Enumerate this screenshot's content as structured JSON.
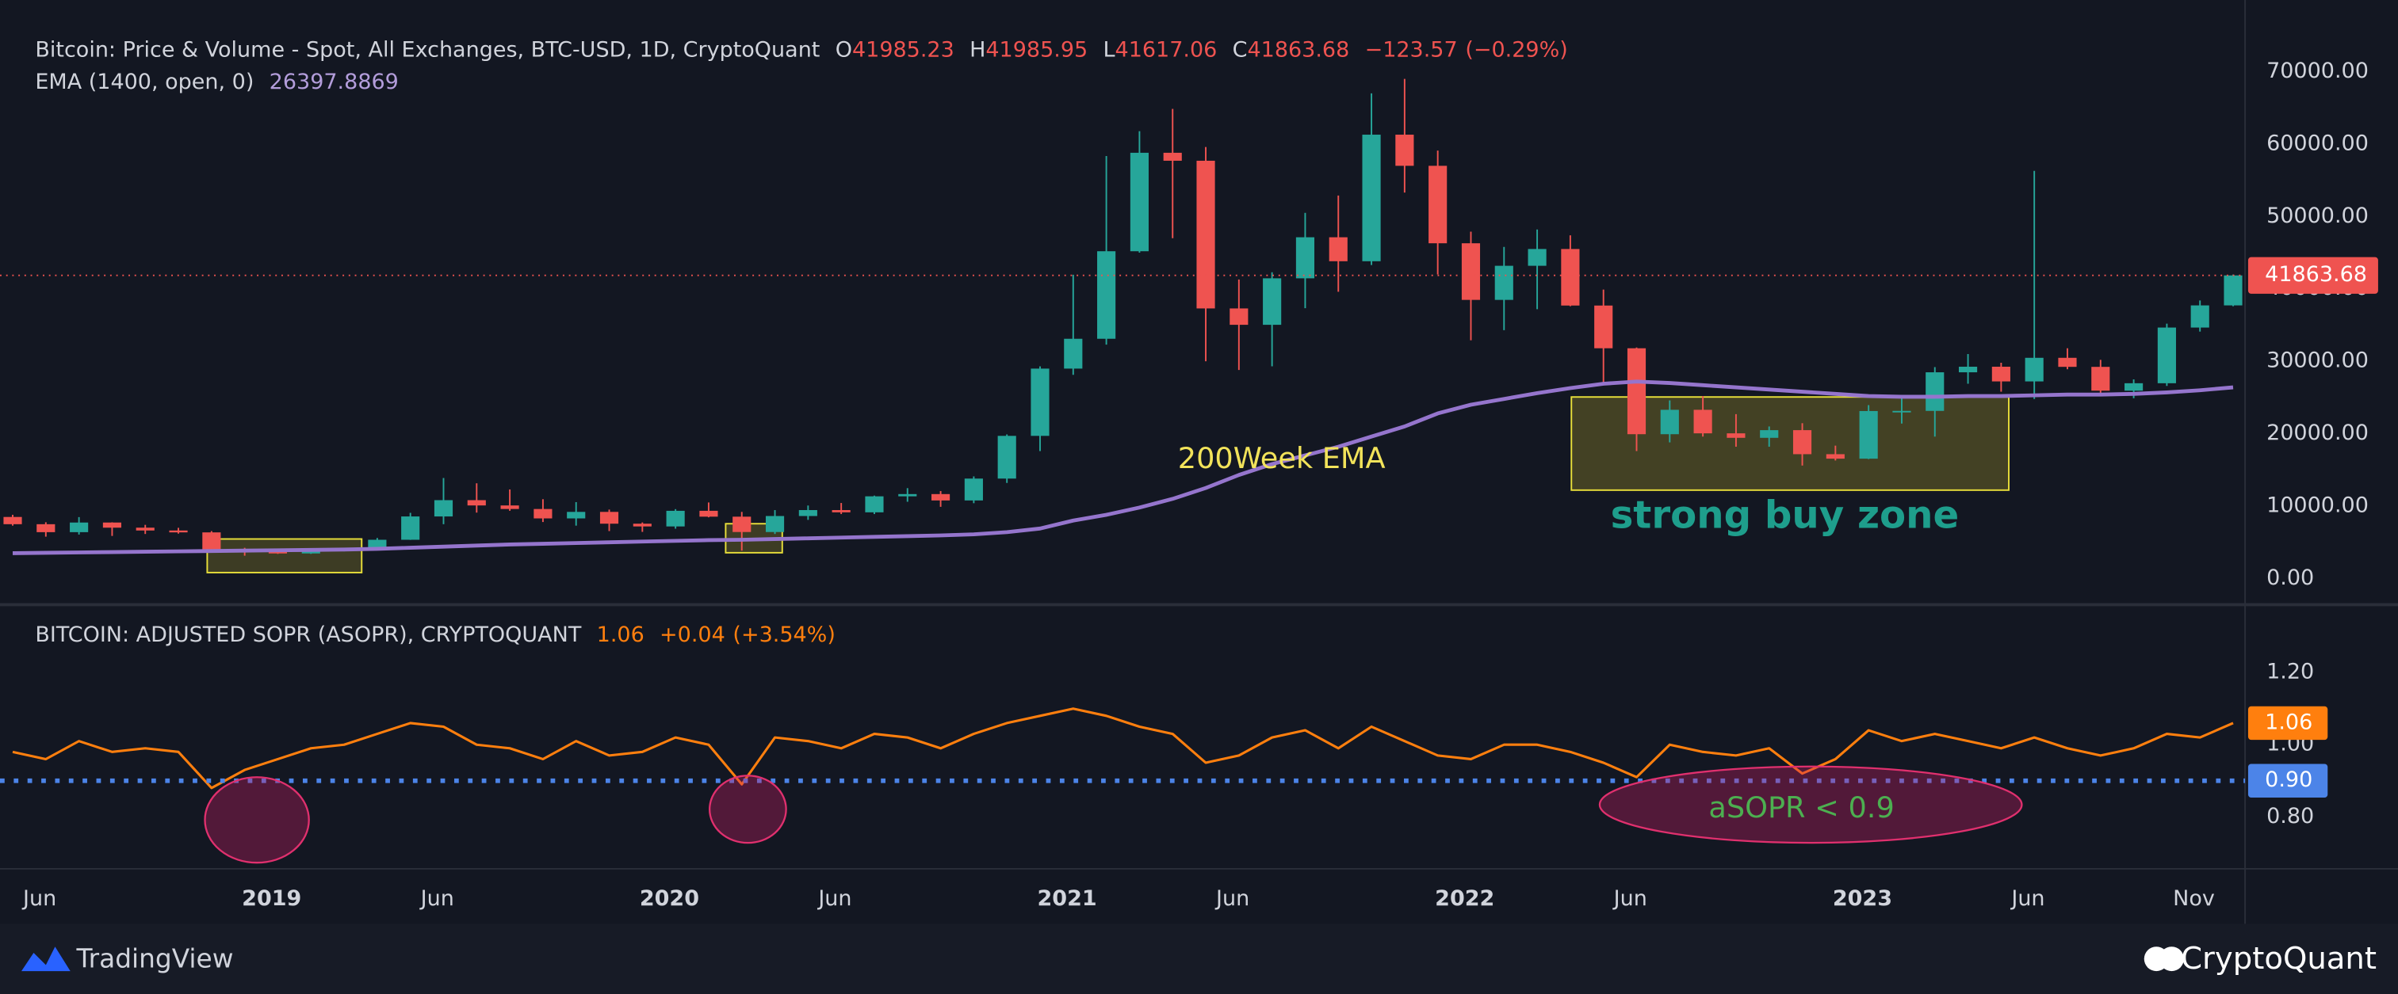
{
  "chart_data": [
    {
      "type": "candlestick",
      "title": "Bitcoin: Price & Volume - Spot, All Exchanges, BTC-USD, 1D, CryptoQuant",
      "legend": [
        {
          "label": "O",
          "value": 41985.23
        },
        {
          "label": "H",
          "value": 41985.95
        },
        {
          "label": "L",
          "value": 41617.06
        },
        {
          "label": "C",
          "value": 41863.68
        }
      ],
      "change": {
        "value": -123.57,
        "label": "−123.57"
      },
      "change_pct": {
        "value": -0.29,
        "label": "(−0.29%)"
      },
      "categories": [
        null,
        "Jun",
        null,
        null,
        null,
        null,
        null,
        null,
        "2019",
        null,
        null,
        null,
        null,
        "Jun",
        null,
        null,
        null,
        null,
        null,
        null,
        "2020",
        null,
        null,
        null,
        null,
        "Jun",
        null,
        null,
        null,
        null,
        null,
        null,
        "2021",
        null,
        null,
        null,
        null,
        "Jun",
        null,
        null,
        null,
        null,
        null,
        null,
        "2022",
        null,
        null,
        null,
        null,
        "Jun",
        null,
        null,
        null,
        null,
        null,
        null,
        "2023",
        null,
        null,
        null,
        null,
        "Jun",
        null,
        null,
        null,
        null,
        "Nov",
        null
      ],
      "open": [
        8500,
        7500,
        6400,
        7730,
        7020,
        6630,
        6370,
        4040,
        3740,
        3460,
        3820,
        4100,
        5350,
        8570,
        10820,
        10090,
        9600,
        8300,
        9200,
        7570,
        7190,
        9350,
        8540,
        6420,
        8630,
        9450,
        9140,
        11350,
        11660,
        10780,
        13800,
        19700,
        28990,
        33110,
        45200,
        58800,
        57700,
        37300,
        35040,
        41460,
        47130,
        43820,
        61300,
        57000,
        46300,
        38480,
        43190,
        45510,
        37700,
        31800,
        19930,
        23300,
        20050,
        19430,
        20490,
        17170,
        16550,
        23130,
        23150,
        28480,
        29250,
        27220,
        30480,
        29230,
        25940,
        26970,
        34660,
        37720
      ],
      "high": [
        8800,
        7770,
        8480,
        7760,
        7410,
        7000,
        6550,
        4240,
        4100,
        4200,
        4120,
        5600,
        9070,
        13880,
        13150,
        12300,
        10950,
        10550,
        9520,
        7740,
        9580,
        10500,
        9200,
        9450,
        10080,
        10430,
        11450,
        12480,
        12080,
        14100,
        19900,
        29300,
        41950,
        58350,
        61780,
        64860,
        59590,
        41300,
        42300,
        50500,
        52900,
        67000,
        69000,
        59100,
        47900,
        45800,
        48200,
        47400,
        39900,
        31900,
        24600,
        25200,
        22700,
        21000,
        21450,
        18350,
        23950,
        25250,
        29200,
        31000,
        29800,
        56300,
        31800,
        30200,
        27500,
        35200,
        38400,
        41985.95
      ],
      "low": [
        7300,
        5780,
        6070,
        5880,
        6150,
        6200,
        3650,
        3150,
        3400,
        3400,
        3750,
        4080,
        5330,
        7500,
        9100,
        9350,
        7800,
        7300,
        6550,
        6440,
        6880,
        8450,
        3850,
        6150,
        8100,
        8900,
        8900,
        10600,
        9900,
        10400,
        13200,
        17600,
        28130,
        32300,
        45000,
        47000,
        30000,
        28800,
        29300,
        37330,
        39600,
        43300,
        53300,
        42000,
        32900,
        34300,
        37200,
        37600,
        26700,
        17600,
        18800,
        19600,
        18200,
        18200,
        15600,
        16300,
        16500,
        21400,
        19600,
        26900,
        25800,
        24800,
        28900,
        25200,
        24900,
        26600,
        34100,
        37600
      ],
      "close": [
        7500,
        6400,
        7730,
        7020,
        6630,
        6370,
        4040,
        3740,
        3460,
        3820,
        4100,
        5350,
        8570,
        10820,
        10090,
        9600,
        8300,
        9200,
        7570,
        7190,
        9350,
        8540,
        6420,
        8630,
        9450,
        9140,
        11350,
        11660,
        10780,
        13800,
        19700,
        28990,
        33110,
        45200,
        58800,
        57700,
        37300,
        35040,
        41460,
        47130,
        43820,
        61300,
        57000,
        46300,
        38480,
        43190,
        45510,
        37700,
        31800,
        19930,
        23300,
        20050,
        19430,
        20490,
        17170,
        16550,
        23130,
        23150,
        28480,
        29250,
        27220,
        30480,
        29230,
        25940,
        26970,
        34660,
        37720,
        41863.68
      ],
      "color_up": "#26a69a",
      "color_down": "#ef5350",
      "series": [
        {
          "name": "EMA (1400, open, 0)",
          "color": "#9575cd",
          "values": [
            3500,
            3550,
            3600,
            3650,
            3700,
            3750,
            3800,
            3850,
            3900,
            3950,
            4000,
            4100,
            4250,
            4400,
            4550,
            4700,
            4800,
            4900,
            5000,
            5100,
            5200,
            5300,
            5350,
            5450,
            5550,
            5650,
            5750,
            5850,
            5950,
            6100,
            6400,
            6900,
            8000,
            8800,
            9800,
            11000,
            12500,
            14300,
            15800,
            17000,
            18200,
            19600,
            21000,
            22800,
            24000,
            24800,
            25600,
            26300,
            26900,
            27200,
            27000,
            26700,
            26400,
            26100,
            25800,
            25500,
            25200,
            25100,
            25100,
            25200,
            25200,
            25300,
            25400,
            25400,
            25500,
            25700,
            26000,
            26397.8869
          ]
        }
      ],
      "ylim": [
        -3400,
        79900
      ],
      "yticks": [
        {
          "value": 0,
          "label": "0.00"
        },
        {
          "value": 10000,
          "label": "10000.00"
        },
        {
          "value": 20000,
          "label": "20000.00"
        },
        {
          "value": 30000,
          "label": "30000.00"
        },
        {
          "value": 40000,
          "label": "40000.00"
        },
        {
          "value": 50000,
          "label": "50000.00"
        },
        {
          "value": 60000,
          "label": "60000.00"
        },
        {
          "value": 70000,
          "label": "70000.00"
        }
      ],
      "annotations": [
        {
          "text": "200Week EMA",
          "color": "#f2e35a"
        },
        {
          "text": "strong buy zone",
          "color": "#1e9e8c"
        }
      ]
    },
    {
      "type": "line",
      "title": "BITCOIN: ADJUSTED SOPR (ASOPR), CRYPTOQUANT",
      "color": "#ff7f0e",
      "change": {
        "value": 0.04,
        "label": "+0.04"
      },
      "change_pct": {
        "value": 3.54,
        "label": "(+3.54%)"
      },
      "categories": [
        null,
        "Jun",
        null,
        null,
        null,
        null,
        null,
        null,
        "2019",
        null,
        null,
        null,
        null,
        "Jun",
        null,
        null,
        null,
        null,
        null,
        null,
        "2020",
        null,
        null,
        null,
        null,
        "Jun",
        null,
        null,
        null,
        null,
        null,
        null,
        "2021",
        null,
        null,
        null,
        null,
        "Jun",
        null,
        null,
        null,
        null,
        null,
        null,
        "2022",
        null,
        null,
        null,
        null,
        "Jun",
        null,
        null,
        null,
        null,
        null,
        null,
        "2023",
        null,
        null,
        null,
        null,
        "Jun",
        null,
        null,
        null,
        null,
        "Nov",
        null
      ],
      "values": [
        0.98,
        0.96,
        1.01,
        0.98,
        0.99,
        0.98,
        0.88,
        0.93,
        0.96,
        0.99,
        1.0,
        1.03,
        1.06,
        1.05,
        1.0,
        0.99,
        0.96,
        1.01,
        0.97,
        0.98,
        1.02,
        1.0,
        0.89,
        1.02,
        1.01,
        0.99,
        1.03,
        1.02,
        0.99,
        1.03,
        1.06,
        1.08,
        1.1,
        1.08,
        1.05,
        1.03,
        0.95,
        0.97,
        1.02,
        1.04,
        0.99,
        1.05,
        1.01,
        0.97,
        0.96,
        1.0,
        1.0,
        0.98,
        0.95,
        0.91,
        1.0,
        0.98,
        0.97,
        0.99,
        0.92,
        0.96,
        1.04,
        1.01,
        1.03,
        1.01,
        0.99,
        1.02,
        0.99,
        0.97,
        0.99,
        1.03,
        1.02,
        1.06
      ],
      "level": {
        "value": 0.9,
        "label": "0.90",
        "color": "#4c84e8"
      },
      "ylim": [
        0.66,
        1.38
      ],
      "yticks": [
        {
          "value": 0.8,
          "label": "0.80"
        },
        {
          "value": 1.0,
          "label": "1.00"
        },
        {
          "value": 1.2,
          "label": "1.20"
        }
      ],
      "annotations": [
        {
          "text": "aSOPR < 0.9",
          "color": "#4caf50"
        }
      ]
    }
  ],
  "footer": {
    "left": "TradingView",
    "right": "CryptoQuant"
  }
}
